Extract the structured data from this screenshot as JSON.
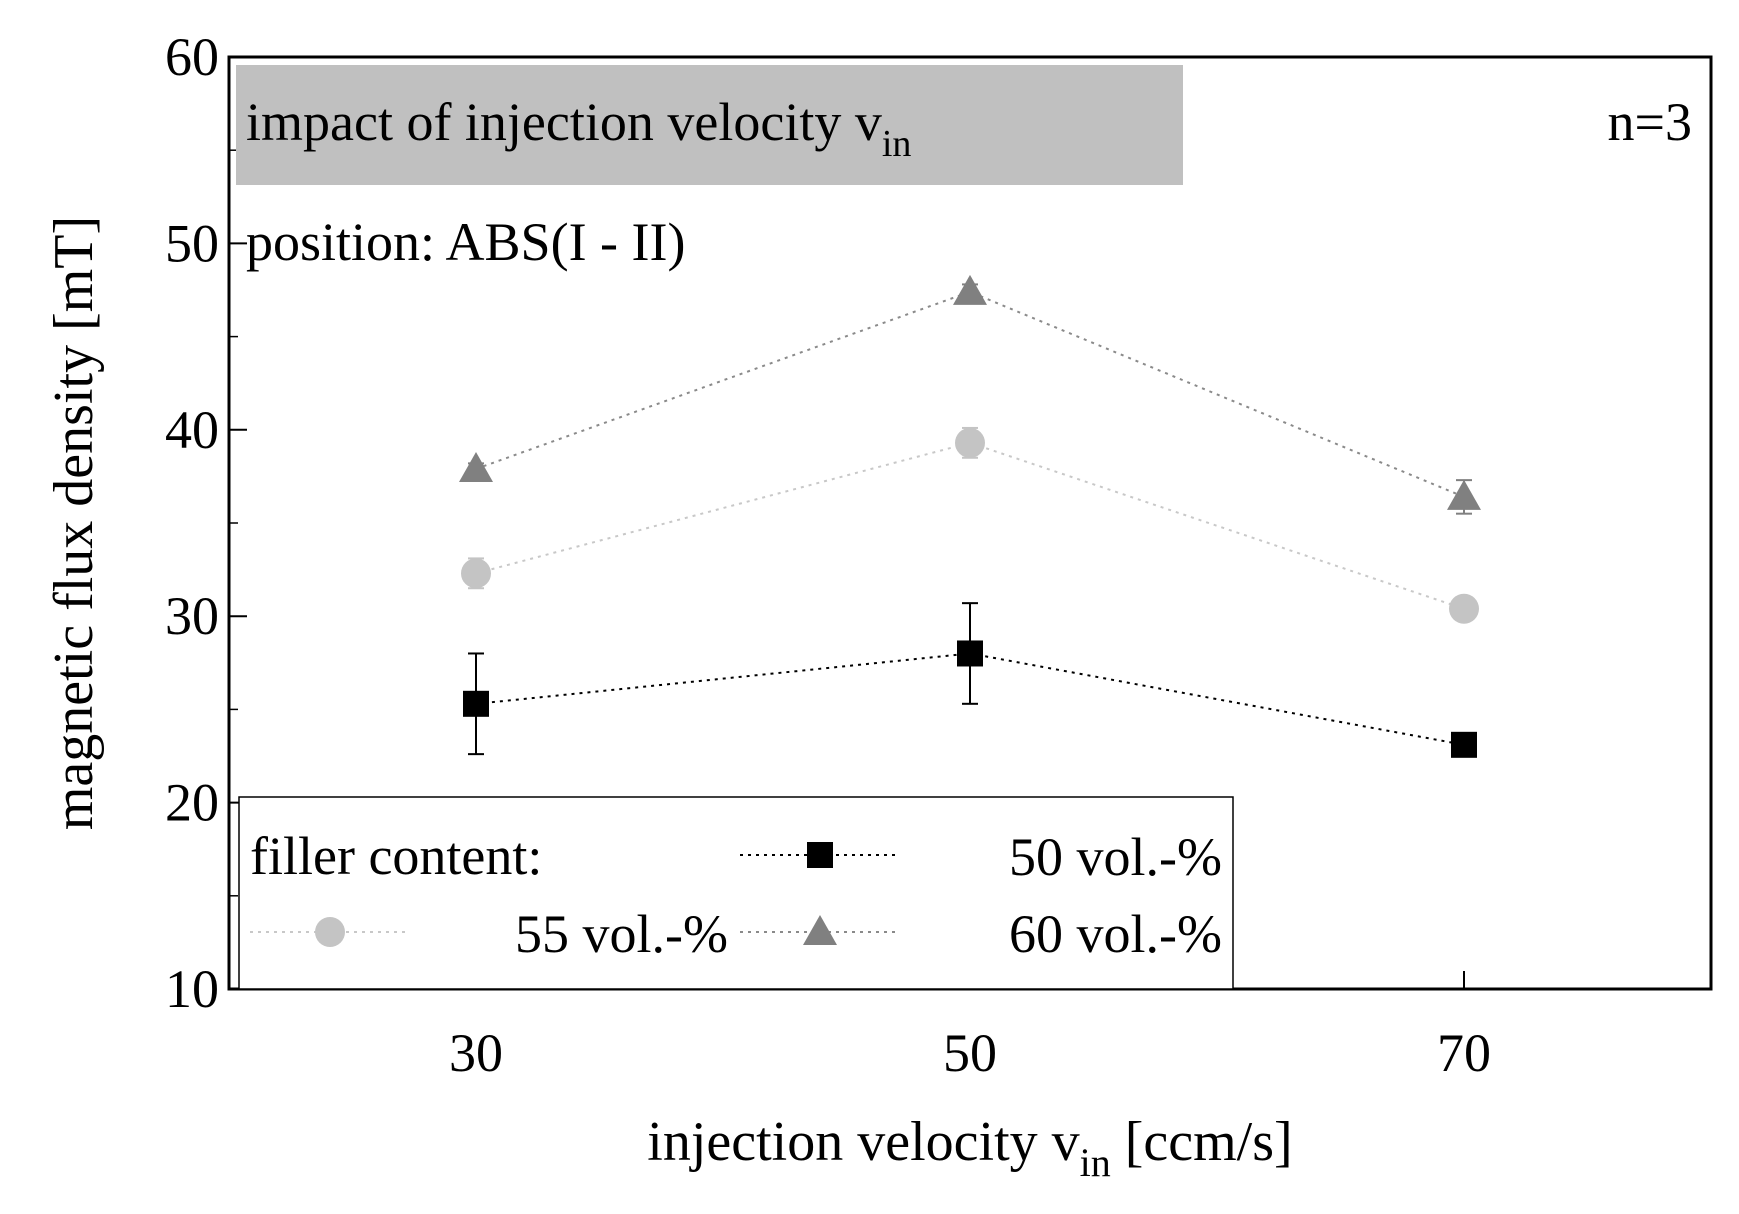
{
  "chart_data": {
    "type": "scatter",
    "title_box": {
      "text": "impact of injection velocity v",
      "sub": "in"
    },
    "position_label": "position: ABS(I - II)",
    "n_label": "n=3",
    "xlabel": {
      "text": "injection velocity v",
      "sub": "in",
      "suffix": " [ccm/s]"
    },
    "ylabel": "magnetic flux density [mT]",
    "xlim": [
      20,
      80
    ],
    "ylim": [
      10,
      60
    ],
    "xticks": [
      30,
      50,
      70
    ],
    "yticks": [
      10,
      20,
      30,
      40,
      50,
      60
    ],
    "legend": {
      "title": "filler content:",
      "placement": "bottom-left"
    },
    "series": [
      {
        "name": "50 vol.-%",
        "marker": "square",
        "color": "#000000",
        "x": [
          30,
          50,
          70
        ],
        "y": [
          25.3,
          28.0,
          23.1
        ],
        "err": [
          2.7,
          2.7,
          0.3
        ]
      },
      {
        "name": "55 vol.-%",
        "marker": "circle",
        "color": "#c4c4c4",
        "x": [
          30,
          50,
          70
        ],
        "y": [
          32.3,
          39.3,
          30.4
        ],
        "err": [
          0.8,
          0.8,
          0.3
        ]
      },
      {
        "name": "60 vol.-%",
        "marker": "triangle",
        "color": "#808080",
        "x": [
          30,
          50,
          70
        ],
        "y": [
          37.9,
          47.4,
          36.4
        ],
        "err": [
          0.3,
          0.4,
          0.9
        ]
      }
    ]
  }
}
